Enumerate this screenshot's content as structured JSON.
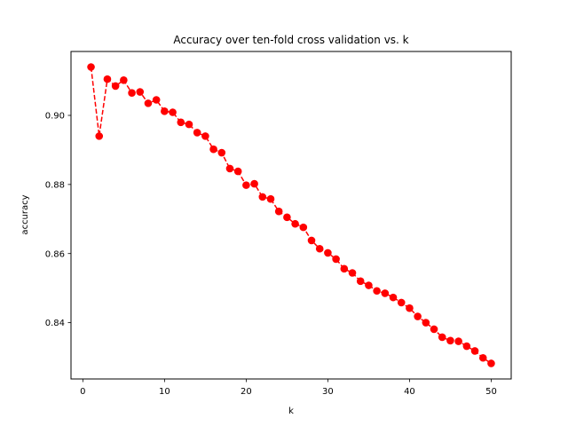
{
  "chart_data": {
    "type": "line",
    "title": "Accuracy over ten-fold cross validation vs. k",
    "xlabel": "k",
    "ylabel": "accuracy",
    "xlim": [
      -1.45,
      52.45
    ],
    "ylim": [
      0.8237,
      0.9185
    ],
    "xticks": [
      0,
      10,
      20,
      30,
      40,
      50
    ],
    "yticks": [
      0.84,
      0.86,
      0.88,
      0.9
    ],
    "ytick_labels": [
      "0.84",
      "0.86",
      "0.88",
      "0.90"
    ],
    "grid": false,
    "series": [
      {
        "color": "#ff0000",
        "line_style": "dashed",
        "marker": "circle",
        "x": [
          1,
          2,
          3,
          4,
          5,
          6,
          7,
          8,
          9,
          10,
          11,
          12,
          13,
          14,
          15,
          16,
          17,
          18,
          19,
          20,
          21,
          22,
          23,
          24,
          25,
          26,
          27,
          28,
          29,
          30,
          31,
          32,
          33,
          34,
          35,
          36,
          37,
          38,
          39,
          40,
          41,
          42,
          43,
          44,
          45,
          46,
          47,
          48,
          49,
          50
        ],
        "y": [
          0.914,
          0.894,
          0.9105,
          0.9085,
          0.9102,
          0.9065,
          0.9068,
          0.9035,
          0.9045,
          0.9012,
          0.9009,
          0.898,
          0.8974,
          0.895,
          0.894,
          0.8902,
          0.8892,
          0.8846,
          0.8838,
          0.8798,
          0.8802,
          0.8764,
          0.8758,
          0.8722,
          0.8705,
          0.8686,
          0.8676,
          0.8638,
          0.8614,
          0.8602,
          0.8584,
          0.8556,
          0.8544,
          0.852,
          0.8508,
          0.8492,
          0.8485,
          0.8473,
          0.8458,
          0.8442,
          0.8418,
          0.84,
          0.8381,
          0.8358,
          0.8348,
          0.8346,
          0.8332,
          0.8318,
          0.8298,
          0.8282
        ]
      }
    ]
  }
}
